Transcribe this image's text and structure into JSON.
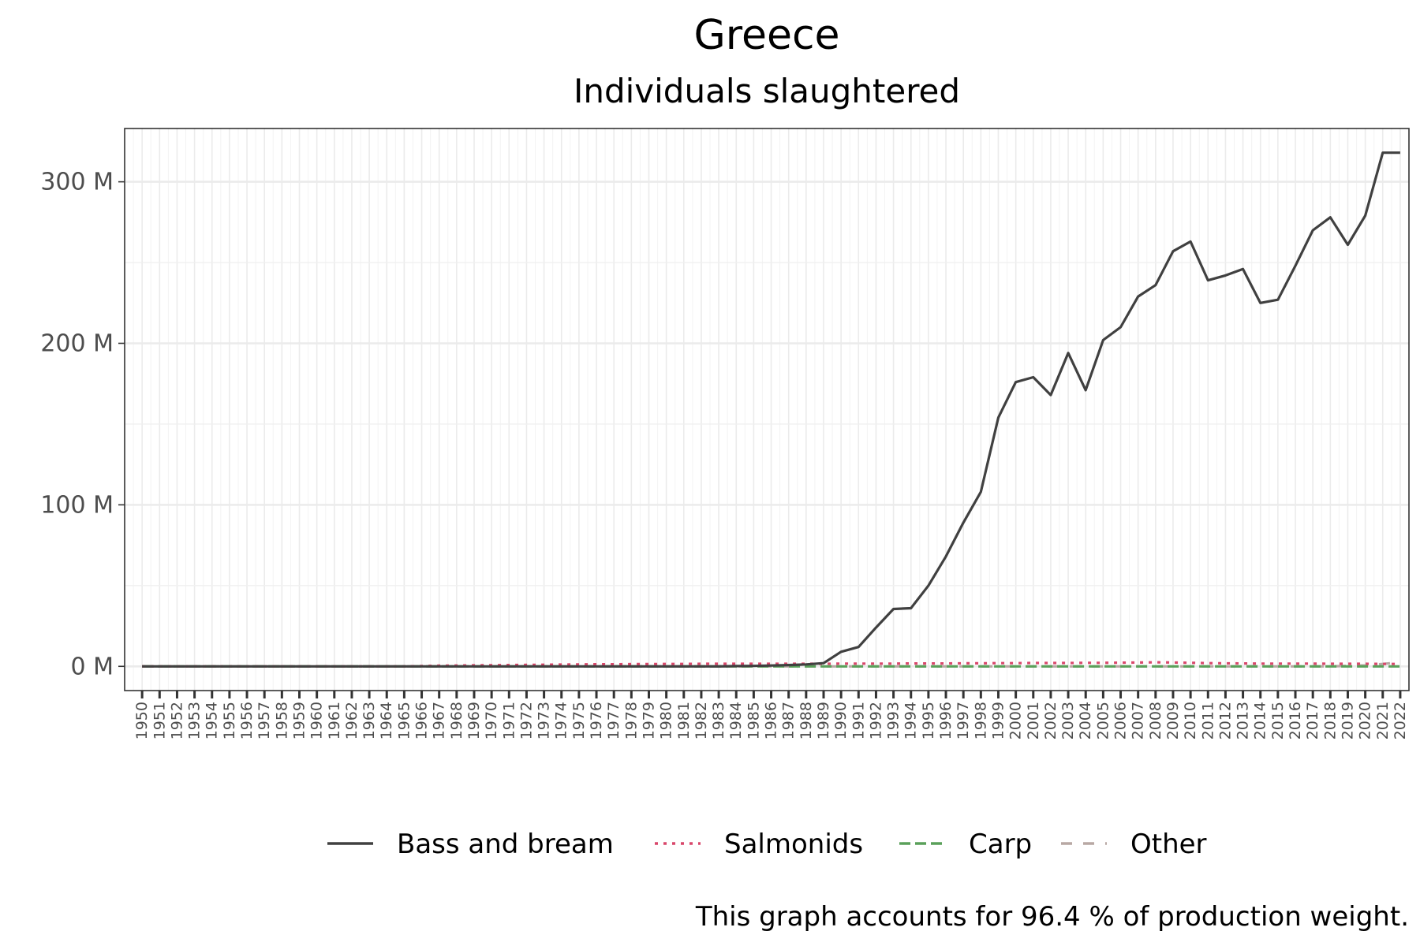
{
  "chart_data": {
    "type": "line",
    "title": "Greece",
    "subtitle": "Individuals slaughtered",
    "caption": "This graph accounts for 96.4 % of production weight.",
    "xlabel": "",
    "ylabel": "",
    "y_unit_suffix": " M",
    "ylim": [
      -15,
      333
    ],
    "y_ticks": [
      0,
      100,
      200,
      300
    ],
    "y_tick_labels": [
      "0 M",
      "100 M",
      "200 M",
      "300 M"
    ],
    "grid": true,
    "legend_position": "bottom",
    "x": [
      1950,
      1951,
      1952,
      1953,
      1954,
      1955,
      1956,
      1957,
      1958,
      1959,
      1960,
      1961,
      1962,
      1963,
      1964,
      1965,
      1966,
      1967,
      1968,
      1969,
      1970,
      1971,
      1972,
      1973,
      1974,
      1975,
      1976,
      1977,
      1978,
      1979,
      1980,
      1981,
      1982,
      1983,
      1984,
      1985,
      1986,
      1987,
      1988,
      1989,
      1990,
      1991,
      1992,
      1993,
      1994,
      1995,
      1996,
      1997,
      1998,
      1999,
      2000,
      2001,
      2002,
      2003,
      2004,
      2005,
      2006,
      2007,
      2008,
      2009,
      2010,
      2011,
      2012,
      2013,
      2014,
      2015,
      2016,
      2017,
      2018,
      2019,
      2020,
      2021,
      2022
    ],
    "x_labels": [
      "1950",
      "1951",
      "1952",
      "1953",
      "1954",
      "1955",
      "1956",
      "1957",
      "1958",
      "1959",
      "1960",
      "1961",
      "1962",
      "1963",
      "1964",
      "1965",
      "1966",
      "1967",
      "1968",
      "1969",
      "1970",
      "1971",
      "1972",
      "1973",
      "1974",
      "1975",
      "1976",
      "1977",
      "1978",
      "1979",
      "1980",
      "1981",
      "1982",
      "1983",
      "1984",
      "1985",
      "1986",
      "1987",
      "1988",
      "1989",
      "1990",
      "1991",
      "1992",
      "1993",
      "1994",
      "1995",
      "1996",
      "1997",
      "1998",
      "1999",
      "2000",
      "2001",
      "2002",
      "2003",
      "2004",
      "2005",
      "2006",
      "2007",
      "2008",
      "2009",
      "2010",
      "2011",
      "2012",
      "2013",
      "2014",
      "2015",
      "2016",
      "2017",
      "2018",
      "2019",
      "2020",
      "2021",
      "2022"
    ],
    "series": [
      {
        "name": "Bass and bream",
        "color": "#404040",
        "dash": "solid",
        "values": [
          0,
          0,
          0,
          0,
          0,
          0,
          0,
          0,
          0,
          0,
          0,
          0,
          0,
          0,
          0,
          0,
          0,
          0,
          0,
          0,
          0,
          0,
          0,
          0,
          0,
          0,
          0,
          0,
          0,
          0,
          0,
          0,
          0,
          0,
          0.2,
          0.3,
          0.5,
          0.8,
          1.2,
          2,
          9,
          12,
          24,
          35.5,
          36,
          50,
          68,
          89,
          108,
          154,
          176,
          179,
          168,
          194,
          171,
          202,
          210,
          229,
          236,
          257,
          263,
          239,
          242,
          246,
          225,
          227,
          248,
          270,
          278,
          261,
          279,
          318,
          318
        ]
      },
      {
        "name": "Salmonids",
        "color": "#d9476b",
        "dash": "dotted",
        "values": [
          0,
          0,
          0,
          0,
          0,
          0,
          0,
          0,
          0,
          0,
          0,
          0,
          0,
          0,
          0,
          0,
          0.2,
          0.4,
          0.5,
          0.6,
          0.7,
          0.8,
          0.9,
          1,
          1.1,
          1.2,
          1.3,
          1.3,
          1.4,
          1.4,
          1.5,
          1.5,
          1.6,
          1.6,
          1.6,
          1.6,
          1.6,
          1.6,
          1.6,
          1.6,
          1.7,
          1.7,
          1.7,
          1.7,
          1.8,
          1.8,
          1.8,
          1.9,
          1.9,
          2,
          2,
          2.1,
          2.1,
          2.1,
          2.2,
          2.2,
          2.3,
          2.4,
          2.5,
          2.4,
          2.2,
          2,
          1.9,
          1.8,
          1.7,
          1.7,
          1.7,
          1.7,
          1.6,
          1.6,
          1.6,
          1.5,
          1.5
        ]
      },
      {
        "name": "Carp",
        "color": "#5aa05a",
        "dash": "longdash",
        "values": [
          0,
          0,
          0,
          0,
          0,
          0,
          0,
          0,
          0,
          0,
          0,
          0,
          0,
          0,
          0,
          0,
          0,
          0,
          0,
          0,
          0,
          0,
          0,
          0,
          0,
          0,
          0,
          0,
          0,
          0,
          0,
          0,
          0,
          0,
          0,
          0,
          0,
          0,
          0,
          0,
          0,
          0,
          0,
          0,
          0,
          0,
          0,
          0,
          0,
          0,
          0,
          0,
          0,
          0,
          0,
          0,
          0,
          0,
          0,
          0,
          0,
          0,
          0,
          0,
          0,
          0,
          0,
          0,
          0,
          0,
          0,
          0,
          0
        ]
      },
      {
        "name": "Other",
        "color": "#b8a8a4",
        "dash": "dashed",
        "values": [
          0,
          0,
          0,
          0,
          0,
          0,
          0,
          0,
          0,
          0,
          0,
          0,
          0,
          0,
          0,
          0,
          0,
          0,
          0,
          0,
          0,
          0,
          0,
          0,
          0,
          0,
          0,
          0,
          0,
          0,
          0,
          0,
          0,
          0,
          0,
          0,
          0,
          0,
          0,
          0,
          0,
          0,
          0,
          0,
          0,
          0,
          0,
          0,
          0,
          0,
          0,
          0,
          0,
          0,
          0,
          0,
          0,
          0,
          0,
          0,
          0,
          0,
          0,
          0,
          0,
          0,
          0,
          0,
          0,
          0.3,
          0.6,
          1.5,
          2.5
        ]
      }
    ]
  }
}
